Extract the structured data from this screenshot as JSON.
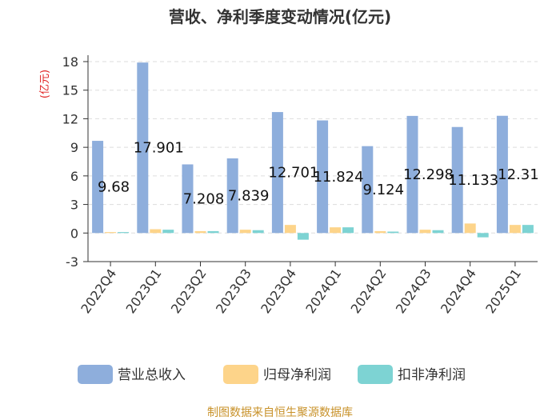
{
  "title": "营收、净利季度变动情况(亿元)",
  "footer": "制图数据来自恒生聚源数据库",
  "colors": {
    "revenue": "#8eaedc",
    "net_profit": "#fdd48a",
    "deducted_profit": "#7dd3d3"
  },
  "chart_data": {
    "type": "bar",
    "title": "营收、净利季度变动情况(亿元)",
    "ylabel": "(亿元)",
    "xlabel": "",
    "ylim": [
      -3,
      18
    ],
    "yticks": [
      -3,
      0,
      3,
      6,
      9,
      12,
      15,
      18
    ],
    "grid": true,
    "legend": "bottom",
    "categories": [
      "2022Q4",
      "2023Q1",
      "2023Q2",
      "2023Q3",
      "2023Q4",
      "2024Q1",
      "2024Q2",
      "2024Q3",
      "2024Q4",
      "2025Q1"
    ],
    "series": [
      {
        "name": "营业总收入",
        "values": [
          9.68,
          17.901,
          7.208,
          7.839,
          12.701,
          11.824,
          9.124,
          12.298,
          11.133,
          12.31
        ],
        "labels": [
          "9.68",
          "17.901",
          "7.208",
          "7.839",
          "12.701",
          "11.824",
          "9.124",
          "12.298",
          "11.133",
          "12.31"
        ]
      },
      {
        "name": "归母净利润",
        "values": [
          0.1,
          0.4,
          0.2,
          0.35,
          0.85,
          0.6,
          0.2,
          0.35,
          1.0,
          0.85
        ]
      },
      {
        "name": "扣非净利润",
        "values": [
          0.1,
          0.35,
          0.2,
          0.3,
          -0.7,
          0.6,
          0.15,
          0.3,
          -0.45,
          0.85
        ]
      }
    ]
  }
}
